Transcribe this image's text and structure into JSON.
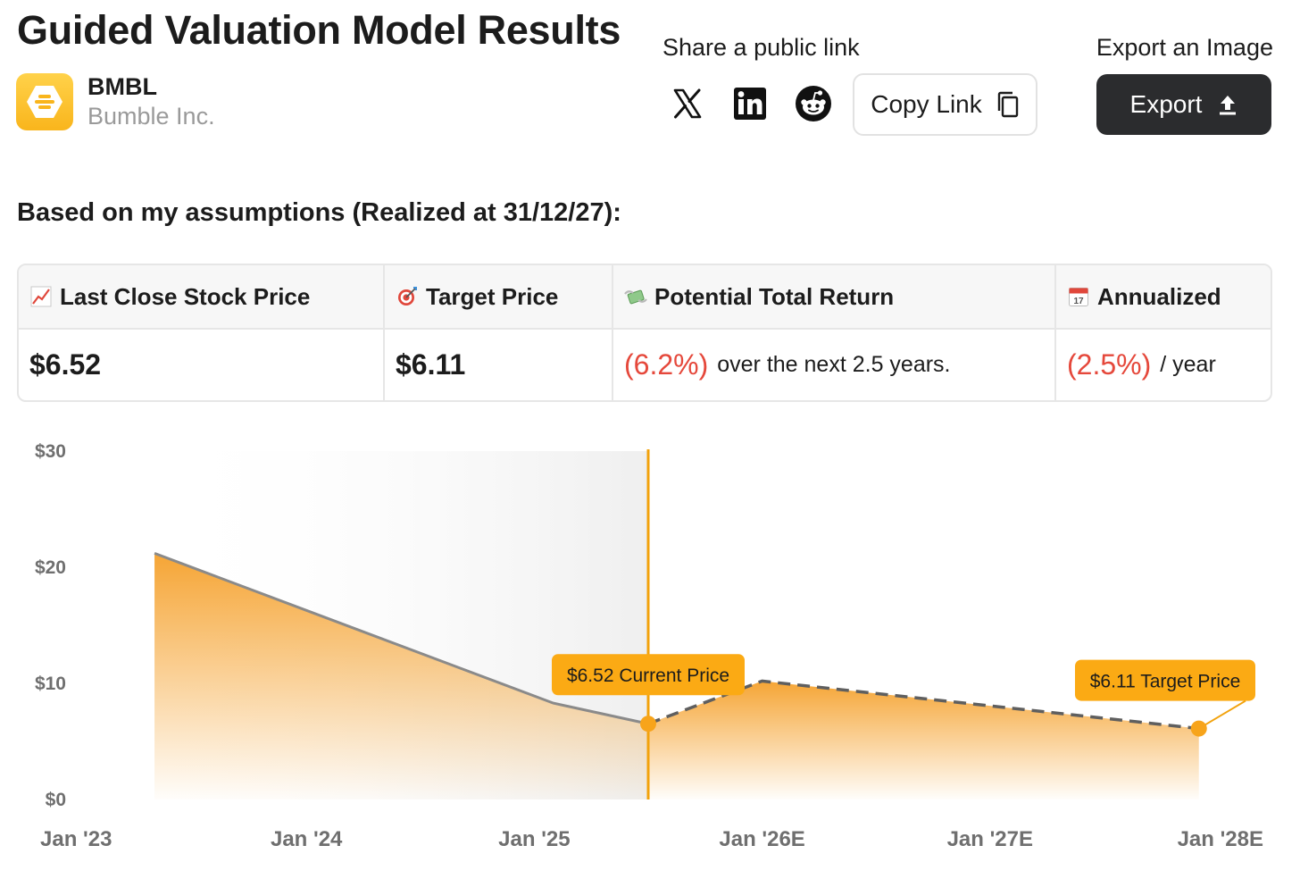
{
  "header": {
    "title": "Guided Valuation Model Results",
    "ticker": "BMBL",
    "company_name": "Bumble Inc."
  },
  "share": {
    "label": "Share a public link",
    "social_icons": [
      "x-icon",
      "linkedin-icon",
      "reddit-icon"
    ],
    "copy_label": "Copy Link"
  },
  "export": {
    "label": "Export an Image",
    "button_label": "Export"
  },
  "assumptions_text": "Based on my assumptions (Realized at 31/12/27):",
  "metrics": [
    {
      "icon": "chart-increasing-icon",
      "label": "Last Close Stock Price",
      "value": "$6.52"
    },
    {
      "icon": "target-icon",
      "label": "Target Price",
      "value": "$6.11"
    },
    {
      "icon": "money-wings-icon",
      "label": "Potential Total Return",
      "value": "(6.2%)",
      "suffix": "over the next 2.5 years."
    },
    {
      "icon": "calendar-icon",
      "label": "Annualized",
      "value": "(2.5%)",
      "suffix": "/ year"
    }
  ],
  "colors": {
    "accent": "#f5a417",
    "negative": "#e5483b",
    "dark": "#2b2c2e",
    "history_line": "#8a8a8a"
  },
  "chart_data": {
    "type": "area",
    "y_ticks": [
      "$0",
      "$10",
      "$20",
      "$30"
    ],
    "ylim": [
      0,
      30
    ],
    "x_ticks": [
      "Jan '23",
      "Jan '24",
      "Jan '25",
      "Jan '26E",
      "Jan '27E",
      "Jan '28E"
    ],
    "x_tick_values": [
      "2023-01",
      "2024-01",
      "2025-01",
      "2026-01",
      "2027-01",
      "2028-01"
    ],
    "xlim": [
      "2023-01",
      "2028-01"
    ],
    "series": [
      {
        "style": "solid",
        "points": [
          {
            "x": "2023-05",
            "y": 21.2
          },
          {
            "x": "2025-02",
            "y": 8.3
          },
          {
            "x": "2025-07",
            "y": 6.52
          }
        ]
      },
      {
        "style": "dashed",
        "points": [
          {
            "x": "2025-07",
            "y": 6.52
          },
          {
            "x": "2026-01",
            "y": 10.2
          },
          {
            "x": "2027-12",
            "y": 6.11
          }
        ]
      }
    ],
    "annotations": [
      {
        "label": "$6.52 Current Price",
        "x": "2025-07",
        "y": 6.52
      },
      {
        "label": "$6.11 Target Price",
        "x": "2027-12",
        "y": 6.11
      }
    ]
  }
}
